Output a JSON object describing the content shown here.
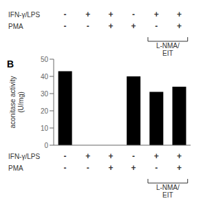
{
  "chart_data": {
    "type": "bar",
    "categories": [
      null,
      null,
      null,
      null,
      null,
      null
    ],
    "values": [
      43,
      0,
      0,
      40,
      31,
      34
    ],
    "ylabel": "aconitase activity\n(U/mg)",
    "ylim": [
      0,
      50
    ],
    "yticks": [
      0,
      10,
      20,
      30,
      40,
      50
    ],
    "grid": false,
    "tick_labels": "y",
    "annotations": [
      {
        "text": "B"
      },
      {
        "text": "IFN-γ/LPS",
        "signs": [
          "-",
          "+",
          "+",
          "-",
          "+",
          "+"
        ]
      },
      {
        "text": "PMA",
        "signs": [
          "-",
          "-",
          "+",
          "+",
          "-",
          "+"
        ]
      },
      {
        "text": "L-NMA/\nEIT",
        "span": [
          4,
          5
        ]
      }
    ]
  }
}
